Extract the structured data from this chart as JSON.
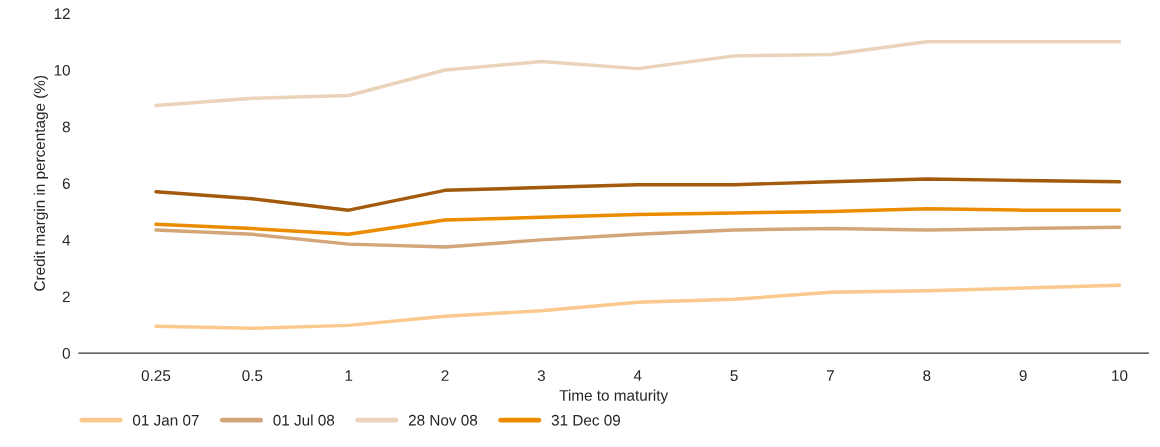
{
  "chart_data": {
    "type": "line",
    "xlabel": "Time to maturity",
    "ylabel": "Credit margin in percentage (%)",
    "categories": [
      "0.25",
      "0.5",
      "1",
      "2",
      "3",
      "4",
      "5",
      "7",
      "8",
      "9",
      "10"
    ],
    "ylim": [
      0,
      12
    ],
    "yticks": [
      0,
      2,
      4,
      6,
      8,
      10,
      12
    ],
    "grid": false,
    "legend": "bottom left",
    "marker": "none",
    "line_style": "solid",
    "series": [
      {
        "name": "01 Jan 07",
        "color": "#fbc98e",
        "values": [
          0.95,
          0.88,
          0.98,
          1.3,
          1.5,
          1.8,
          1.9,
          2.15,
          2.2,
          2.3,
          2.4
        ]
      },
      {
        "name": "01 Jul 08",
        "color": "#d3a679",
        "values": [
          4.35,
          4.2,
          3.85,
          3.75,
          4.0,
          4.2,
          4.35,
          4.4,
          4.35,
          4.4,
          4.45
        ]
      },
      {
        "name": "28 Nov 08",
        "color": "#ebd3bb",
        "values": [
          8.75,
          9.0,
          9.1,
          10.0,
          10.3,
          10.05,
          10.5,
          10.55,
          11.0,
          11.0,
          11.0
        ]
      },
      {
        "name": "31 Dec 09",
        "color": "#eb8c00",
        "values": [
          4.55,
          4.4,
          4.2,
          4.7,
          4.8,
          4.9,
          4.95,
          5.0,
          5.1,
          5.05,
          5.05
        ]
      },
      {
        "color": "#a35a0c",
        "values": [
          5.7,
          5.45,
          5.05,
          5.75,
          5.85,
          5.95,
          5.95,
          6.05,
          6.15,
          6.1,
          6.05
        ]
      }
    ]
  }
}
